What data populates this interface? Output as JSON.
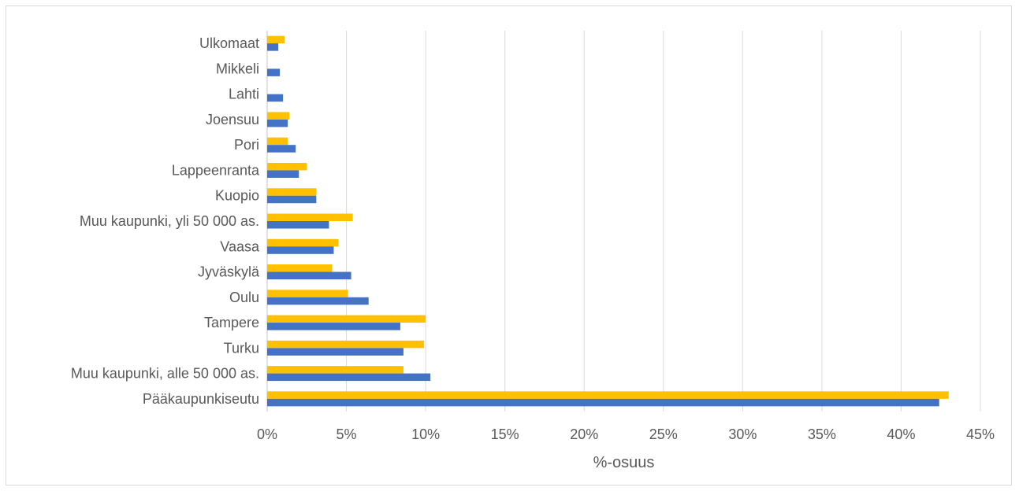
{
  "chart_data": {
    "type": "bar",
    "orientation": "horizontal",
    "categories": [
      "Pääkaupunkiseutu",
      "Muu kaupunki, alle 50 000 as.",
      "Turku",
      "Tampere",
      "Oulu",
      "Jyväskylä",
      "Vaasa",
      "Muu kaupunki, yli 50 000 as.",
      "Kuopio",
      "Lappeenranta",
      "Pori",
      "Joensuu",
      "Lahti",
      "Mikkeli",
      "Ulkomaat"
    ],
    "series": [
      {
        "color": "#FFC000",
        "values": [
          43.0,
          8.6,
          9.9,
          10.0,
          5.1,
          4.1,
          4.5,
          5.4,
          3.1,
          2.5,
          1.3,
          1.4,
          0,
          0,
          1.1
        ]
      },
      {
        "color": "#4472C4",
        "values": [
          42.4,
          10.3,
          8.6,
          8.4,
          6.4,
          5.3,
          4.2,
          3.9,
          3.1,
          2.0,
          1.8,
          1.3,
          1.0,
          0.8,
          0.7
        ]
      }
    ],
    "xlabel": "%-osuus",
    "xlim": [
      0,
      45
    ],
    "xticks": [
      "0%",
      "5%",
      "10%",
      "15%",
      "20%",
      "25%",
      "30%",
      "35%",
      "40%",
      "45%"
    ],
    "grid": true,
    "gridColor": "#d9d9d9",
    "textColor": "#595959"
  }
}
